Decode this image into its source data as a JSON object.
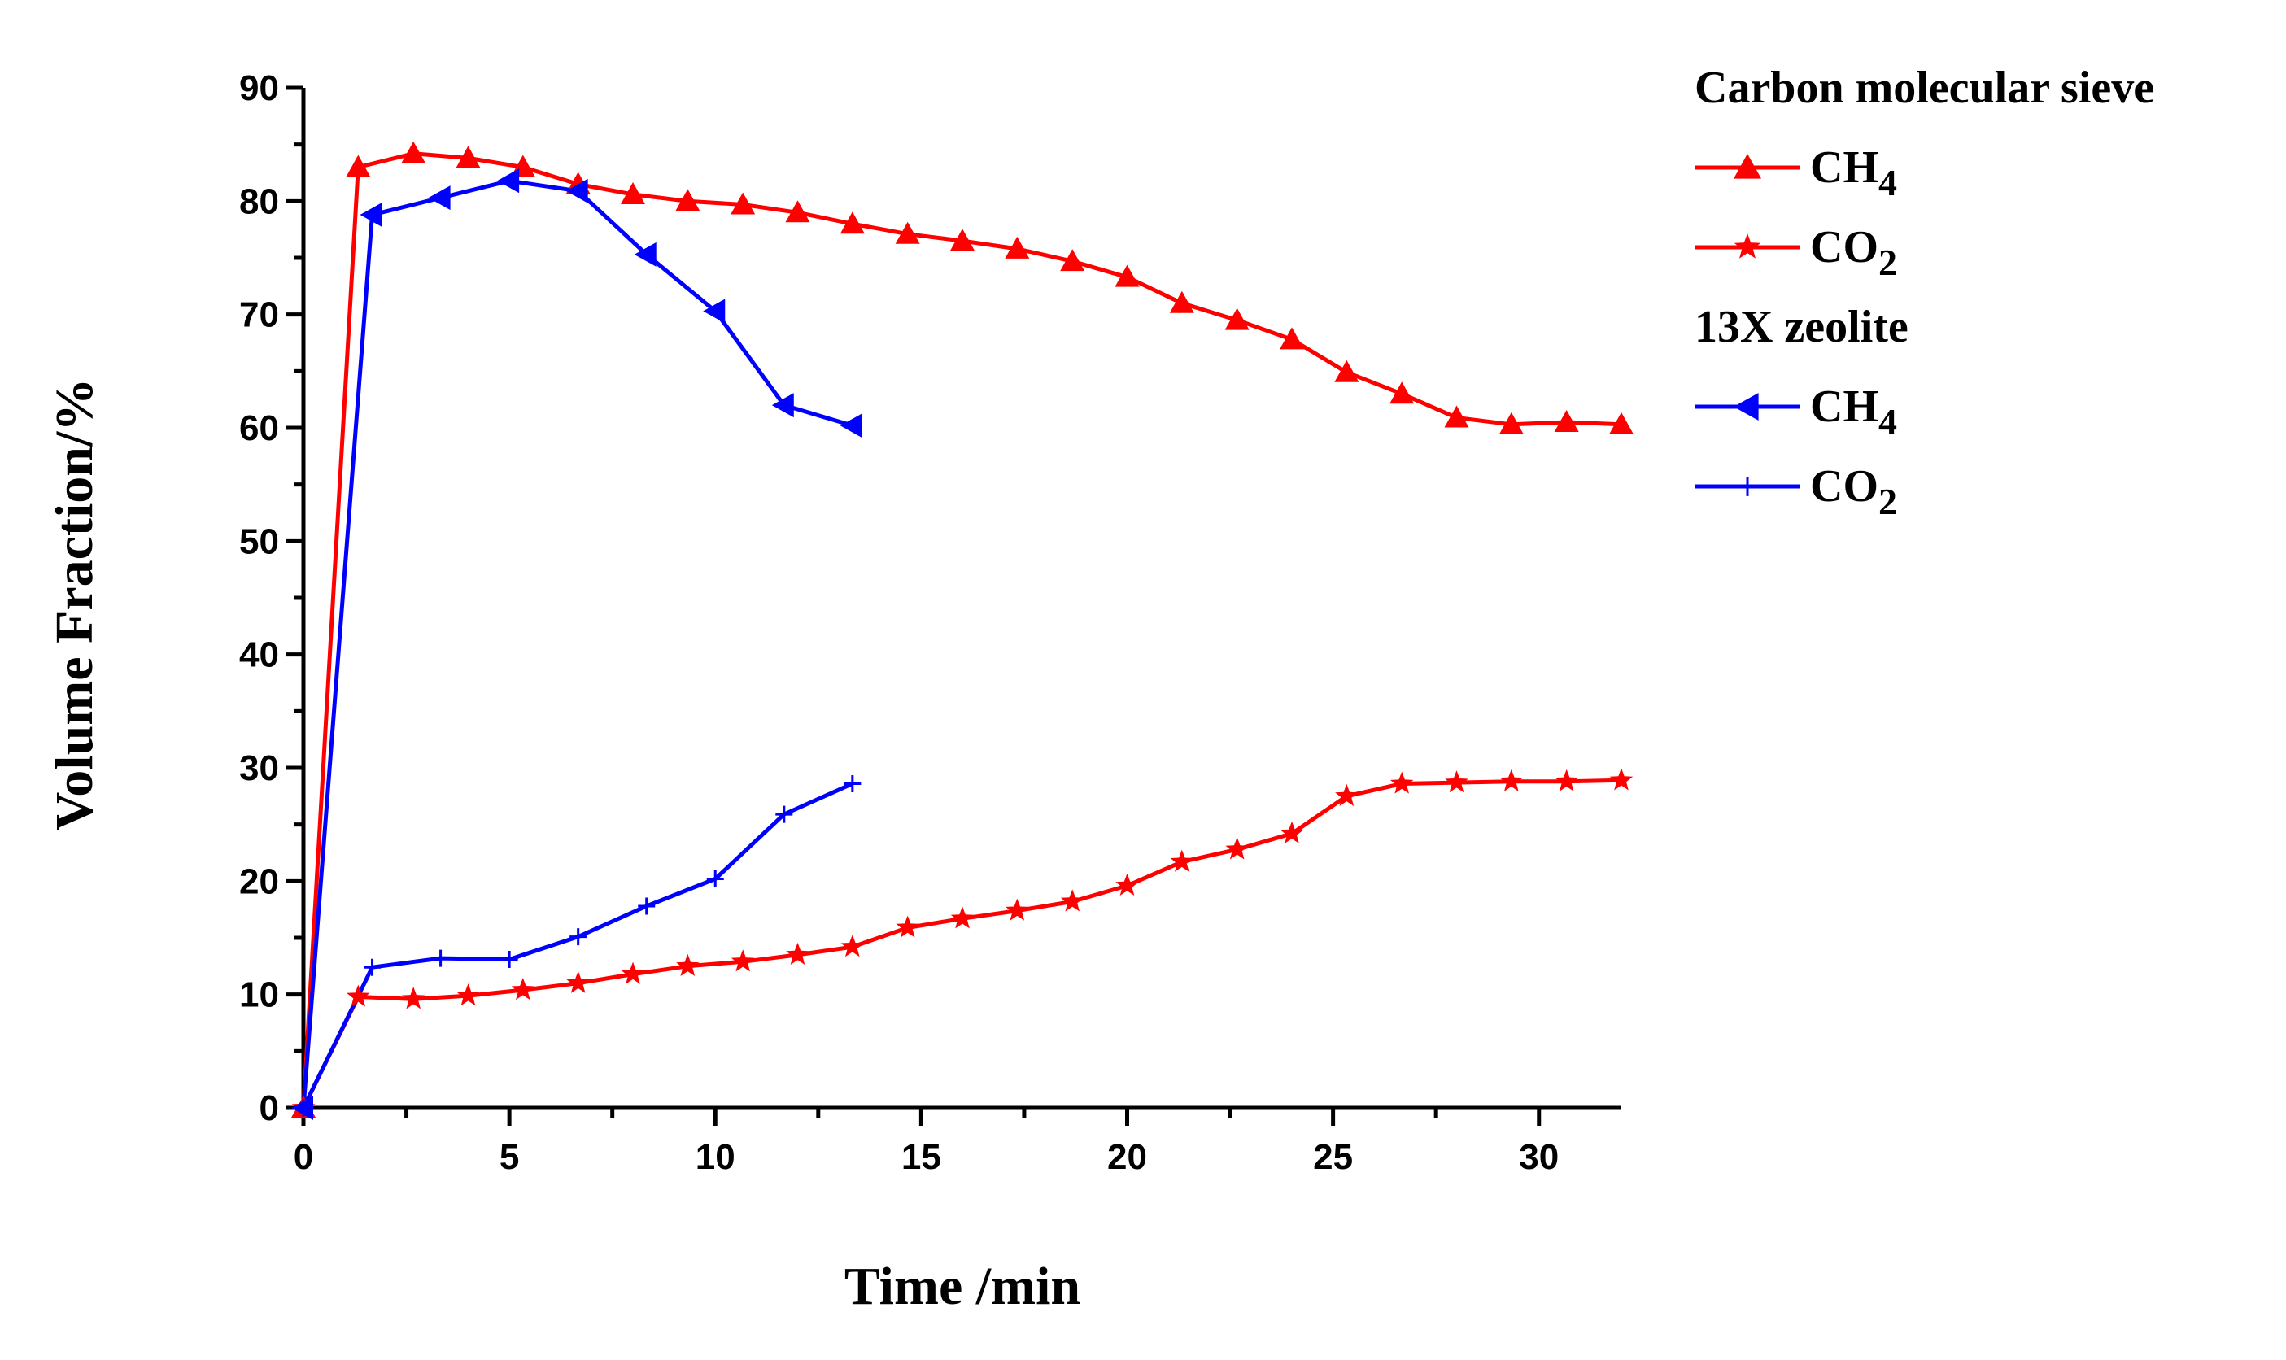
{
  "chart_data": {
    "type": "line",
    "xlabel": "Time /min",
    "ylabel": "Volume Fraction/%",
    "xlim": [
      0,
      32
    ],
    "ylim": [
      0,
      90
    ],
    "xticks": [
      0,
      5,
      10,
      15,
      20,
      25,
      30
    ],
    "yticks": [
      0,
      10,
      20,
      30,
      40,
      50,
      60,
      70,
      80,
      90
    ],
    "legend_position": "top-right-outside",
    "groups": [
      {
        "title": "Carbon molecular sieve"
      },
      {
        "title": "13X  zeolite"
      }
    ],
    "series": [
      {
        "name": "CH4",
        "base": "CH",
        "sub": "4",
        "group": "Carbon molecular sieve",
        "color": "#ff0000",
        "marker": "triangle-up",
        "x": [
          0,
          1.33,
          2.67,
          4.0,
          5.33,
          6.67,
          8.0,
          9.33,
          10.67,
          12.0,
          13.33,
          14.67,
          16.0,
          17.33,
          18.67,
          20.0,
          21.33,
          22.67,
          24.0,
          25.33,
          26.67,
          28.0,
          29.33,
          30.67,
          32.0
        ],
        "y": [
          0,
          83.0,
          84.2,
          83.8,
          83.0,
          81.5,
          80.6,
          80.0,
          79.7,
          79.0,
          78.0,
          77.1,
          76.5,
          75.8,
          74.7,
          73.3,
          71.0,
          69.5,
          67.8,
          64.9,
          63.0,
          60.9,
          60.3,
          60.5,
          60.3
        ]
      },
      {
        "name": "CO2",
        "base": "CO",
        "sub": "2",
        "group": "Carbon molecular sieve",
        "color": "#ff0000",
        "marker": "star",
        "x": [
          0,
          1.33,
          2.67,
          4.0,
          5.33,
          6.67,
          8.0,
          9.33,
          10.67,
          12.0,
          13.33,
          14.67,
          16.0,
          17.33,
          18.67,
          20.0,
          21.33,
          22.67,
          24.0,
          25.33,
          26.67,
          28.0,
          29.33,
          30.67,
          32.0
        ],
        "y": [
          0,
          9.8,
          9.6,
          9.9,
          10.4,
          11.0,
          11.8,
          12.5,
          12.9,
          13.5,
          14.2,
          15.9,
          16.7,
          17.4,
          18.2,
          19.6,
          21.7,
          22.8,
          24.2,
          27.5,
          28.6,
          28.7,
          28.8,
          28.8,
          28.9
        ]
      },
      {
        "name": "CH4",
        "base": "CH",
        "sub": "4",
        "group": "13X  zeolite",
        "color": "#0000ff",
        "marker": "triangle-left",
        "x": [
          0,
          1.67,
          3.33,
          5.0,
          6.67,
          8.33,
          10.0,
          11.67,
          13.33
        ],
        "y": [
          0,
          78.8,
          80.3,
          81.8,
          80.9,
          75.3,
          70.3,
          62.0,
          60.2
        ]
      },
      {
        "name": "CO2",
        "base": "CO",
        "sub": "2",
        "group": "13X  zeolite",
        "color": "#0000ff",
        "marker": "plus",
        "x": [
          0,
          1.67,
          3.33,
          5.0,
          6.67,
          8.33,
          10.0,
          11.67,
          13.33
        ],
        "y": [
          0,
          12.4,
          13.2,
          13.1,
          15.1,
          17.8,
          20.2,
          25.9,
          28.6
        ]
      }
    ]
  }
}
